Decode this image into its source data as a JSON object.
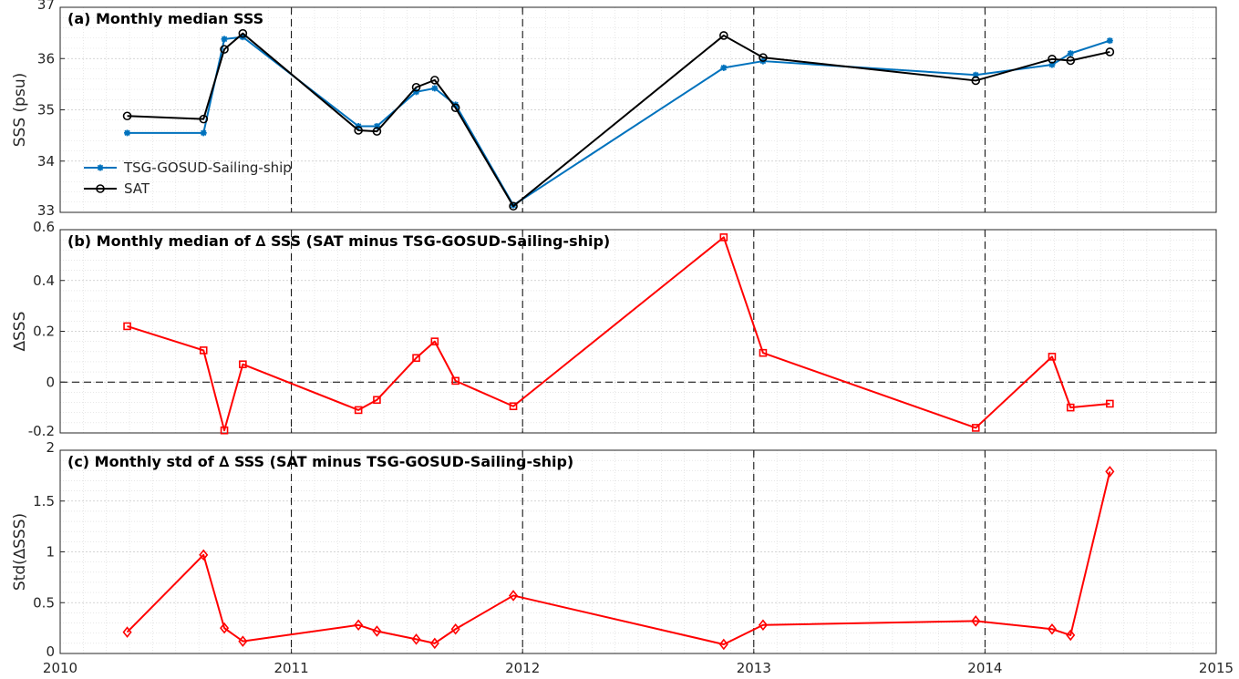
{
  "chart_data": [
    {
      "type": "line",
      "title": "(a) Monthly median SSS",
      "ylabel": "SSS (psu)",
      "xlim": [
        2010,
        2015
      ],
      "ylim": [
        33,
        37
      ],
      "yticks": [
        33,
        34,
        35,
        36,
        37
      ],
      "grid": true,
      "legend_position": "left",
      "series": [
        {
          "name": "TSG-GOSUD-Sailing-ship",
          "color": "#0072BD",
          "marker": "asterisk",
          "x": [
            2010.29,
            2010.62,
            2010.71,
            2010.79,
            2011.29,
            2011.37,
            2011.54,
            2011.62,
            2011.71,
            2011.96,
            2012.87,
            2013.04,
            2013.96,
            2014.29,
            2014.37,
            2014.54
          ],
          "y": [
            34.55,
            34.55,
            36.38,
            36.42,
            34.68,
            34.68,
            35.35,
            35.42,
            35.1,
            33.14,
            35.82,
            35.95,
            35.68,
            35.88,
            36.1,
            36.35
          ]
        },
        {
          "name": "SAT",
          "color": "#000000",
          "marker": "circle",
          "x": [
            2010.29,
            2010.62,
            2010.71,
            2010.79,
            2011.29,
            2011.37,
            2011.54,
            2011.62,
            2011.71,
            2011.96,
            2012.87,
            2013.04,
            2013.96,
            2014.29,
            2014.37,
            2014.54
          ],
          "y": [
            34.88,
            34.82,
            36.18,
            36.49,
            34.6,
            34.58,
            35.44,
            35.58,
            35.04,
            33.12,
            36.45,
            36.02,
            35.57,
            35.99,
            35.96,
            36.13
          ]
        }
      ]
    },
    {
      "type": "line",
      "title": "(b) Monthly median of ∆ SSS (SAT minus TSG-GOSUD-Sailing-ship)",
      "ylabel": "∆SSS",
      "xlim": [
        2010,
        2015
      ],
      "ylim": [
        -0.2,
        0.6
      ],
      "yticks": [
        -0.2,
        0,
        0.2,
        0.4,
        0.6
      ],
      "ytick_labels": [
        "-0.2",
        "0",
        "0.2",
        "0.4",
        "0.6"
      ],
      "grid": true,
      "series": [
        {
          "color": "#FF0000",
          "marker": "square",
          "x": [
            2010.29,
            2010.62,
            2010.71,
            2010.79,
            2011.29,
            2011.37,
            2011.54,
            2011.62,
            2011.71,
            2011.96,
            2012.87,
            2013.04,
            2013.96,
            2014.29,
            2014.37,
            2014.54
          ],
          "y": [
            0.22,
            0.125,
            -0.19,
            0.07,
            -0.11,
            -0.07,
            0.095,
            0.16,
            0.005,
            -0.095,
            0.57,
            0.115,
            -0.18,
            0.1,
            -0.1,
            -0.085
          ]
        }
      ]
    },
    {
      "type": "line",
      "title": "(c) Monthly std of ∆ SSS (SAT minus TSG-GOSUD-Sailing-ship)",
      "ylabel": "Std(∆SSS)",
      "xlim": [
        2010,
        2015
      ],
      "ylim": [
        0,
        2
      ],
      "yticks": [
        0,
        0.5,
        1,
        1.5,
        2
      ],
      "ytick_labels": [
        "0",
        "0.5",
        "1",
        "1.5",
        "2"
      ],
      "xticks": [
        2010,
        2011,
        2012,
        2013,
        2014,
        2015
      ],
      "xtick_labels": [
        "2010",
        "2011",
        "2012",
        "2013",
        "2014",
        "2015"
      ],
      "grid": true,
      "series": [
        {
          "color": "#FF0000",
          "marker": "diamond",
          "x": [
            2010.29,
            2010.62,
            2010.71,
            2010.79,
            2011.29,
            2011.37,
            2011.54,
            2011.62,
            2011.71,
            2011.96,
            2012.87,
            2013.04,
            2013.96,
            2014.29,
            2014.37,
            2014.54
          ],
          "y": [
            0.21,
            0.97,
            0.25,
            0.12,
            0.28,
            0.22,
            0.14,
            0.1,
            0.24,
            0.57,
            0.09,
            0.28,
            0.32,
            0.24,
            0.18,
            1.79
          ]
        }
      ]
    }
  ]
}
